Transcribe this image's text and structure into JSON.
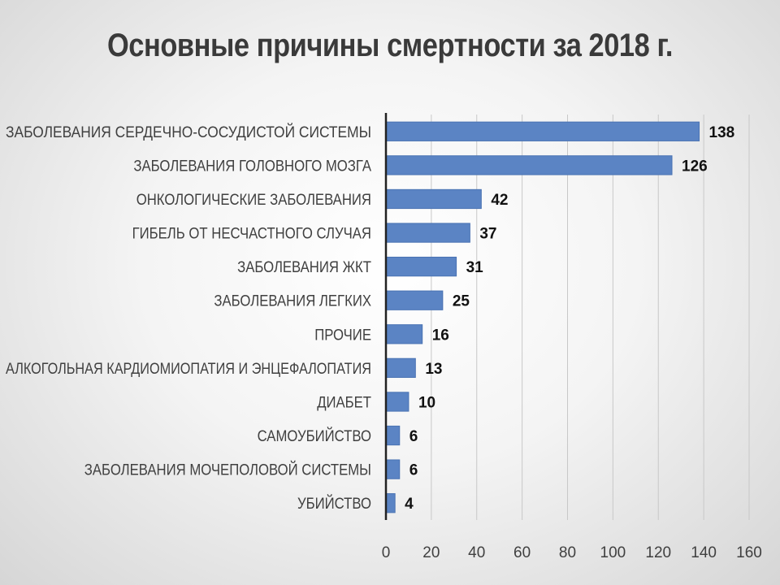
{
  "title": "Основные причины смертности за 2018 г.",
  "colors": {
    "bar": "#5b84c4",
    "bar_edge": "#4a73b3",
    "grid": "#c8c8c8",
    "axis": "#222222"
  },
  "chart_data": {
    "type": "bar",
    "orientation": "horizontal",
    "title": "Основные причины смертности за 2018 г.",
    "categories": [
      "ЗАБОЛЕВАНИЯ СЕРДЕЧНО-СОСУДИСТОЙ СИСТЕМЫ",
      "ЗАБОЛЕВАНИЯ ГОЛОВНОГО МОЗГА",
      "ОНКОЛОГИЧЕСКИЕ ЗАБОЛЕВАНИЯ",
      "ГИБЕЛЬ ОТ НЕСЧАСТНОГО СЛУЧАЯ",
      "ЗАБОЛЕВАНИЯ ЖКТ",
      "ЗАБОЛЕВАНИЯ ЛЕГКИХ",
      "ПРОЧИЕ",
      "АЛКОГОЛЬНАЯ КАРДИОМИОПАТИЯ И ЭНЦЕФАЛОПАТИЯ",
      "ДИАБЕТ",
      "САМОУБИЙСТВО",
      "ЗАБОЛЕВАНИЯ МОЧЕПОЛОВОЙ СИСТЕМЫ",
      "УБИЙСТВО"
    ],
    "values": [
      138,
      126,
      42,
      37,
      31,
      25,
      16,
      13,
      10,
      6,
      6,
      4
    ],
    "xlim": [
      0,
      160
    ],
    "xticks": [
      0,
      20,
      40,
      60,
      80,
      100,
      120,
      140,
      160
    ],
    "grid": "vertical",
    "legend": "none"
  }
}
